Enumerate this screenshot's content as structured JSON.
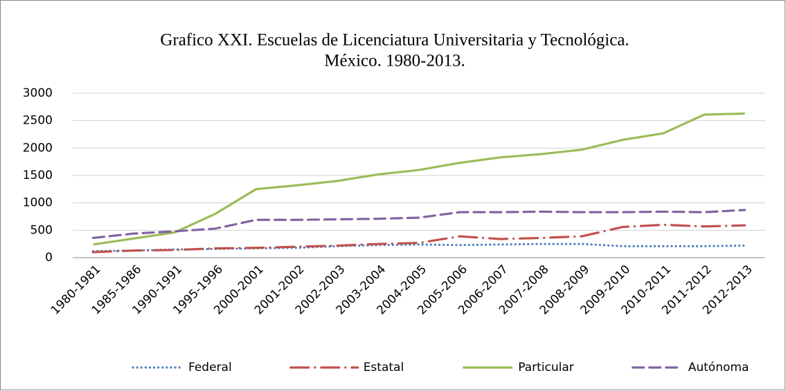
{
  "chart_data": {
    "type": "line",
    "title": [
      "Grafico XXI. Escuelas de Licenciatura Universitaria y Tecnológica.",
      "México. 1980-2013."
    ],
    "categories": [
      "1980-1981",
      "1985-1986",
      "1990-1991",
      "1995-1996",
      "2000-2001",
      "2001-2002",
      "2002-2003",
      "2003-2004",
      "2004-2005",
      "2005-2006",
      "2006-2007",
      "2007-2008",
      "2008-2009",
      "2009-2010",
      "2010-2011",
      "2011-2012",
      "2012-2013"
    ],
    "series": [
      {
        "name": "Federal",
        "color": "#4f81bd",
        "dash": "dotted",
        "values": [
          120,
          130,
          150,
          160,
          170,
          180,
          210,
          230,
          240,
          230,
          240,
          250,
          250,
          210,
          210,
          210,
          220
        ]
      },
      {
        "name": "Estatal",
        "color": "#c0504d",
        "dash": "long-dash-dot",
        "values": [
          100,
          130,
          140,
          170,
          180,
          200,
          220,
          250,
          270,
          390,
          340,
          360,
          390,
          560,
          600,
          570,
          590
        ]
      },
      {
        "name": "Particular",
        "color": "#9bbb59",
        "dash": "solid",
        "values": [
          240,
          350,
          460,
          800,
          1250,
          1320,
          1400,
          1520,
          1600,
          1730,
          1830,
          1890,
          1970,
          2150,
          2270,
          2610,
          2630
        ]
      },
      {
        "name": "Autónoma",
        "color": "#8064a2",
        "dash": "dashed",
        "values": [
          360,
          440,
          480,
          530,
          690,
          690,
          700,
          710,
          730,
          830,
          830,
          840,
          830,
          830,
          840,
          830,
          870
        ]
      }
    ],
    "ylim": [
      0,
      3000
    ],
    "yticks": [
      0,
      500,
      1000,
      1500,
      2000,
      2500,
      3000
    ],
    "grid": true,
    "legend": "bottom"
  }
}
